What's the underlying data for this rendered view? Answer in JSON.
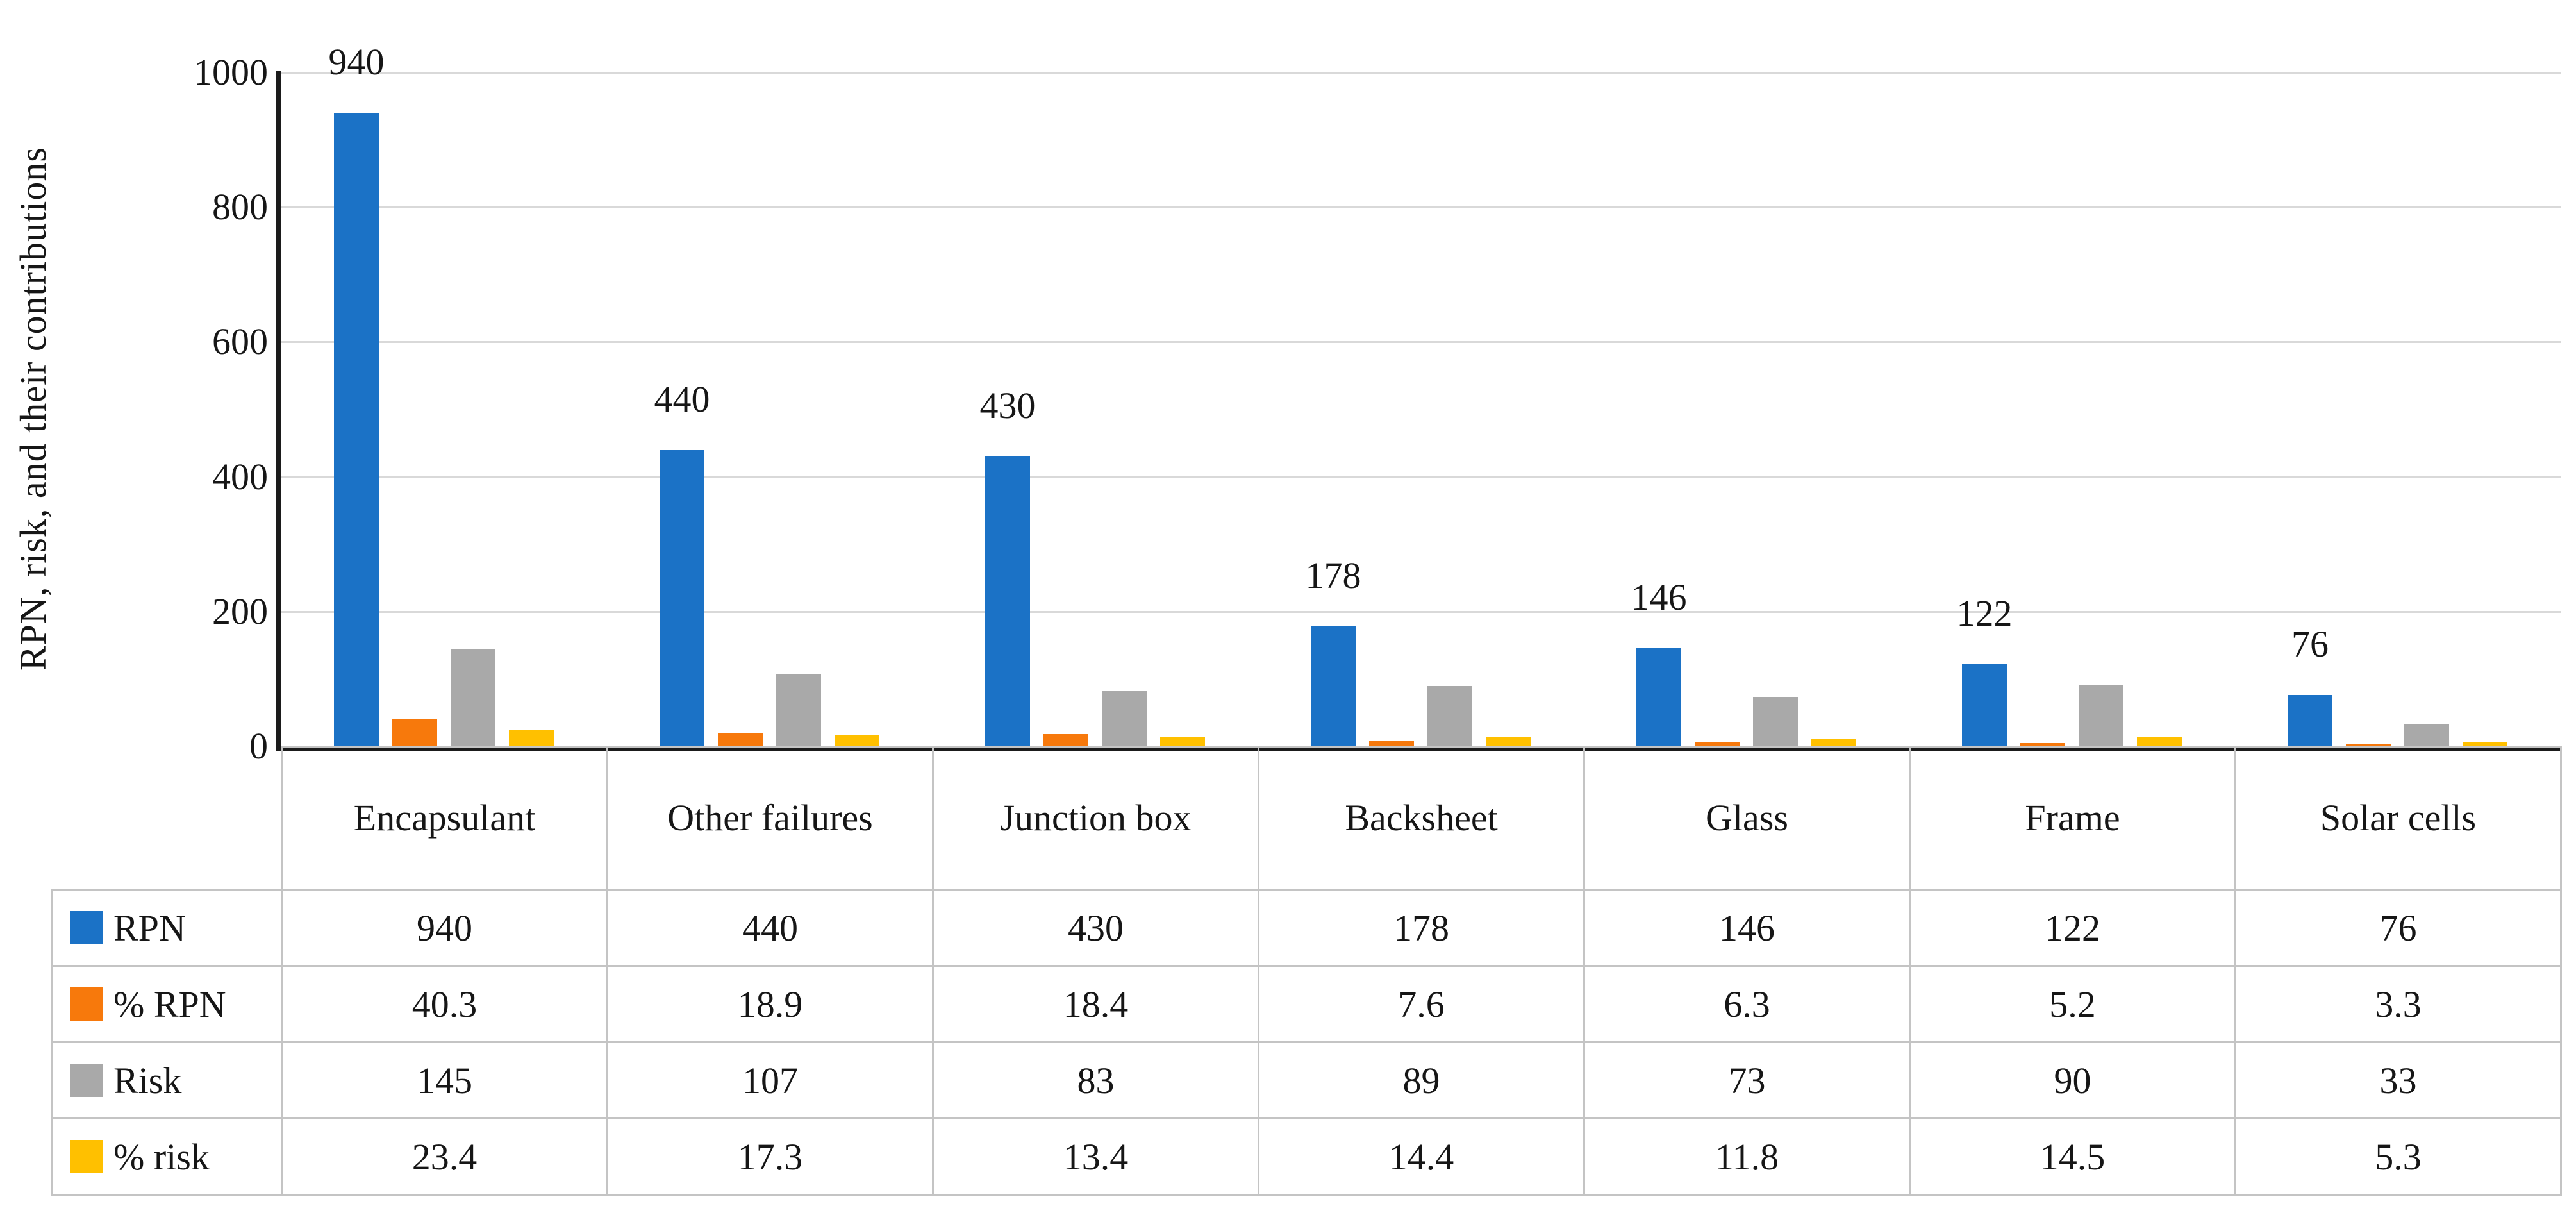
{
  "chart_data": {
    "type": "bar",
    "title": "",
    "ylabel": "RPN, risk, and their contributions",
    "xlabel": "",
    "ylim": [
      0,
      1000
    ],
    "ytick_step": 200,
    "yticks": [
      "1000",
      "800",
      "600",
      "400",
      "200",
      "0"
    ],
    "grid": "horizontal",
    "legend_position": "table-left",
    "categories": [
      "Encapsulant",
      "Other failures",
      "Junction box",
      "Backsheet",
      "Glass",
      "Frame",
      "Solar cells"
    ],
    "series": [
      {
        "name": "RPN",
        "color": "#1b72c6",
        "values": [
          940,
          440,
          430,
          178,
          146,
          122,
          76
        ],
        "data_labels": [
          "940",
          "440",
          "430",
          "178",
          "146",
          "122",
          "76"
        ]
      },
      {
        "name": "% RPN",
        "color": "#f7790c",
        "values": [
          40.3,
          18.9,
          18.4,
          7.6,
          6.3,
          5.2,
          3.3
        ],
        "data_labels": []
      },
      {
        "name": "Risk",
        "color": "#a9a9a9",
        "values": [
          145,
          107,
          83,
          89,
          73,
          90,
          33
        ],
        "data_labels": []
      },
      {
        "name": "% risk",
        "color": "#ffc000",
        "values": [
          23.4,
          17.3,
          13.4,
          14.4,
          11.8,
          14.5,
          5.3
        ],
        "data_labels": []
      }
    ],
    "colors": {
      "axis": "#1b1b1b",
      "gridline": "#d9d9d9",
      "table_border": "#c4c4c4",
      "text": "#161616"
    }
  }
}
